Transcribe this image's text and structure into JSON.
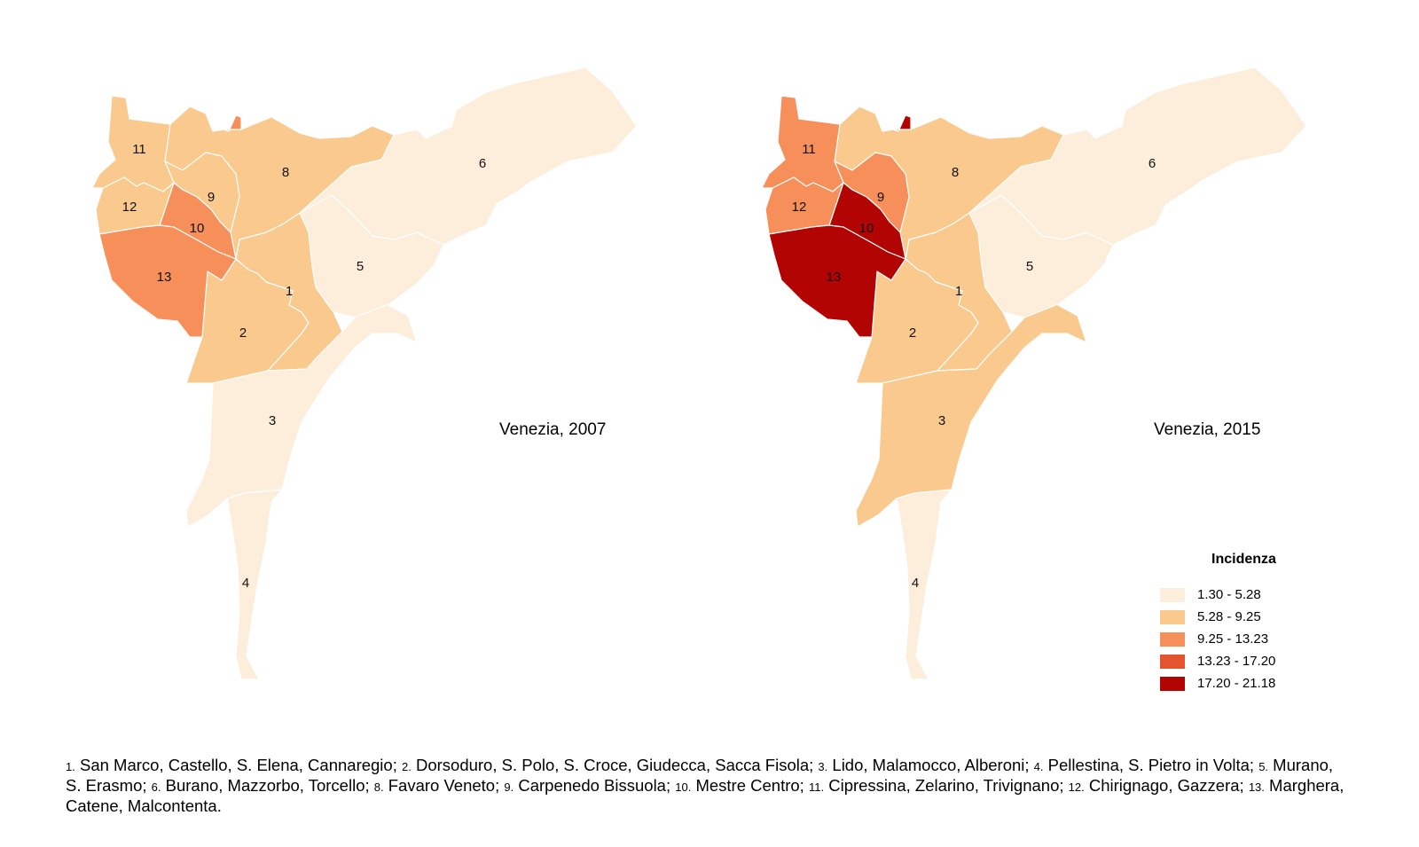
{
  "maps": [
    {
      "title": "Venezia, 2007",
      "zones": [
        {
          "id": "1",
          "label": "1",
          "class": 1
        },
        {
          "id": "2",
          "label": "2",
          "class": 1
        },
        {
          "id": "3",
          "label": "3",
          "class": 0
        },
        {
          "id": "4",
          "label": "4",
          "class": 0
        },
        {
          "id": "5",
          "label": "5",
          "class": 0
        },
        {
          "id": "6",
          "label": "6",
          "class": 0
        },
        {
          "id": "8",
          "label": "8",
          "class": 1
        },
        {
          "id": "9",
          "label": "9",
          "class": 1
        },
        {
          "id": "10",
          "label": "10",
          "class": 2
        },
        {
          "id": "11",
          "label": "11",
          "class": 1
        },
        {
          "id": "12",
          "label": "12",
          "class": 1
        },
        {
          "id": "13",
          "label": "13",
          "class": 2
        },
        {
          "id": "7",
          "label": "",
          "class": 2
        }
      ]
    },
    {
      "title": "Venezia, 2015",
      "zones": [
        {
          "id": "1",
          "label": "1",
          "class": 1
        },
        {
          "id": "2",
          "label": "2",
          "class": 1
        },
        {
          "id": "3",
          "label": "3",
          "class": 1
        },
        {
          "id": "4",
          "label": "4",
          "class": 0
        },
        {
          "id": "5",
          "label": "5",
          "class": 0
        },
        {
          "id": "6",
          "label": "6",
          "class": 0
        },
        {
          "id": "8",
          "label": "8",
          "class": 1
        },
        {
          "id": "9",
          "label": "9",
          "class": 2
        },
        {
          "id": "10",
          "label": "10",
          "class": 4
        },
        {
          "id": "11",
          "label": "11",
          "class": 2
        },
        {
          "id": "12",
          "label": "12",
          "class": 2
        },
        {
          "id": "13",
          "label": "13",
          "class": 4
        },
        {
          "id": "7",
          "label": "",
          "class": 4
        }
      ]
    }
  ],
  "legend": {
    "title": "Incidenza",
    "classes": [
      {
        "label": "1.30 - 5.28",
        "color": "#fdeedb"
      },
      {
        "label": "5.28 - 9.25",
        "color": "#f9c98d"
      },
      {
        "label": "9.25 - 13.23",
        "color": "#f78f5a"
      },
      {
        "label": "13.23 - 17.20",
        "color": "#e3552f"
      },
      {
        "label": "17.20 - 21.18",
        "color": "#b30404"
      }
    ]
  },
  "caption": [
    {
      "num": "1.",
      "text": " San Marco, Castello, S. Elena, Cannaregio; "
    },
    {
      "num": "2.",
      "text": " Dorsoduro, S. Polo, S. Croce, Giudecca, Sacca Fisola; "
    },
    {
      "num": "3.",
      "text": " Lido, Malamocco, Alberoni; "
    },
    {
      "num": "4.",
      "text": " Pellestina, S. Pietro in Volta; "
    },
    {
      "num": "5.",
      "text": " Murano, S. Erasmo; "
    },
    {
      "num": "6.",
      "text": " Burano, Mazzorbo, Torcello; "
    },
    {
      "num": "8.",
      "text": " Favaro Veneto; "
    },
    {
      "num": "9.",
      "text": " Carpenedo Bissuola; "
    },
    {
      "num": "10.",
      "text": " Mestre Centro; "
    },
    {
      "num": "11.",
      "text": " Cipressina, Zelarino, Trivignano; "
    },
    {
      "num": "12.",
      "text": " Chirignago, Gazzera; "
    },
    {
      "num": "13.",
      "text": " Marghera, Catene, Malcontenta."
    }
  ]
}
